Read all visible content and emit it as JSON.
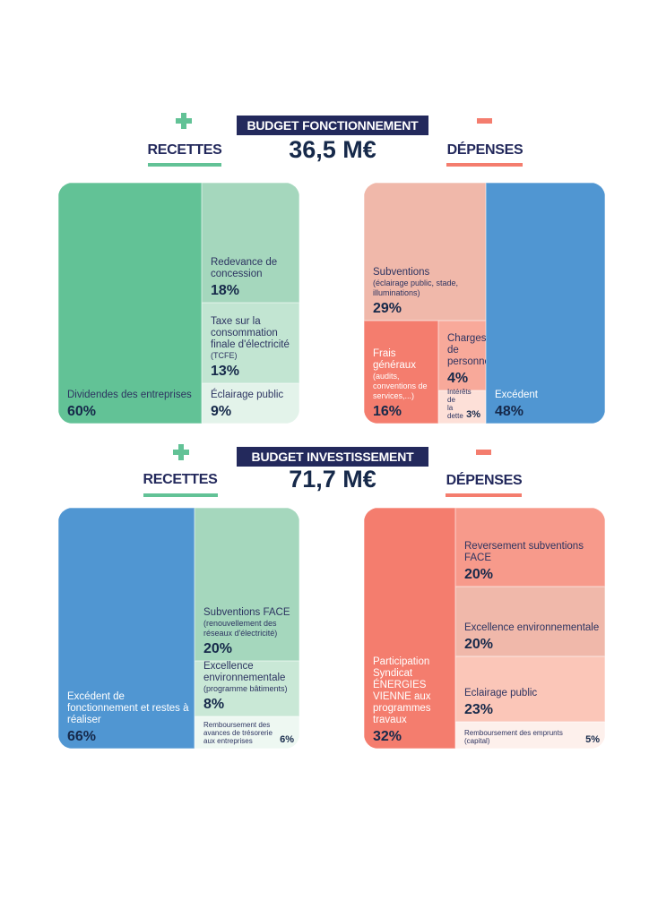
{
  "sections": [
    {
      "title": "BUDGET FONCTIONNEMENT",
      "amount": "36,5 M€",
      "recettes_label": "RECETTES",
      "depenses_label": "DÉPENSES"
    },
    {
      "title": "BUDGET INVESTISSEMENT",
      "amount": "71,7 M€",
      "recettes_label": "RECETTES",
      "depenses_label": "DÉPENSES"
    }
  ],
  "colors": {
    "green": "#62c296",
    "red": "#f47d6e",
    "blue": "#5096d2",
    "navy": "#23295c"
  },
  "chart_data": [
    {
      "type": "treemap",
      "name": "Recettes fonctionnement",
      "items": [
        {
          "label": "Dividendes des entreprises",
          "note": "",
          "value": 60,
          "pct": "60%",
          "color": "#62c296"
        },
        {
          "label": "Redevance de concession",
          "note": "",
          "value": 18,
          "pct": "18%",
          "color": "#a5d7bd"
        },
        {
          "label": "Taxe sur la consommation finale d'électricité",
          "note": "(TCFE)",
          "value": 13,
          "pct": "13%",
          "color": "#c2e5d2"
        },
        {
          "label": "Éclairage public",
          "note": "",
          "value": 9,
          "pct": "9%",
          "color": "#e3f3ea"
        }
      ]
    },
    {
      "type": "treemap",
      "name": "Dépenses fonctionnement",
      "items": [
        {
          "label": "Subventions",
          "note": "(éclairage public, stade, illuminations)",
          "value": 29,
          "pct": "29%",
          "color": "#f0b8aa"
        },
        {
          "label": "Frais généraux",
          "note": "(audits, conventions de services,...)",
          "value": 16,
          "pct": "16%",
          "color": "#f47d6e"
        },
        {
          "label": "Charges de personnel",
          "note": "",
          "value": 4,
          "pct": "4%",
          "color": "#f8a99a"
        },
        {
          "label": "Intérêts de la dette",
          "note": "",
          "value": 3,
          "pct": "3%",
          "color": "#fde0d8"
        },
        {
          "label": "Excédent",
          "note": "",
          "value": 48,
          "pct": "48%",
          "color": "#5096d2"
        }
      ]
    },
    {
      "type": "treemap",
      "name": "Recettes investissement",
      "items": [
        {
          "label": "Excédent de fonctionnement et restes à réaliser",
          "note": "",
          "value": 66,
          "pct": "66%",
          "color": "#5096d2"
        },
        {
          "label": "Subventions FACE",
          "note": "(renouvellement des réseaux d'électricité)",
          "value": 20,
          "pct": "20%",
          "color": "#a5d7bd"
        },
        {
          "label": "Excellence environnementale",
          "note": "(programme bâtiments)",
          "value": 8,
          "pct": "8%",
          "color": "#c9e8d6"
        },
        {
          "label": "Remboursement des avances de trésorerie aux entreprises",
          "note": "",
          "value": 6,
          "pct": "6%",
          "color": "#eef8f2"
        }
      ]
    },
    {
      "type": "treemap",
      "name": "Dépenses investissement",
      "items": [
        {
          "label": "Participation Syndicat ÉNERGIES VIENNE aux programmes travaux",
          "note": "",
          "value": 32,
          "pct": "32%",
          "color": "#f47d6e"
        },
        {
          "label": "Reversement subventions FACE",
          "note": "",
          "value": 20,
          "pct": "20%",
          "color": "#f79a8b"
        },
        {
          "label": "Excellence environnementale",
          "note": "",
          "value": 20,
          "pct": "20%",
          "color": "#f0b8aa"
        },
        {
          "label": "Eclairage public",
          "note": "",
          "value": 23,
          "pct": "23%",
          "color": "#fbc6b8"
        },
        {
          "label": "Remboursement des emprunts (capital)",
          "note": "",
          "value": 5,
          "pct": "5%",
          "color": "#fdf0ec"
        }
      ]
    }
  ]
}
